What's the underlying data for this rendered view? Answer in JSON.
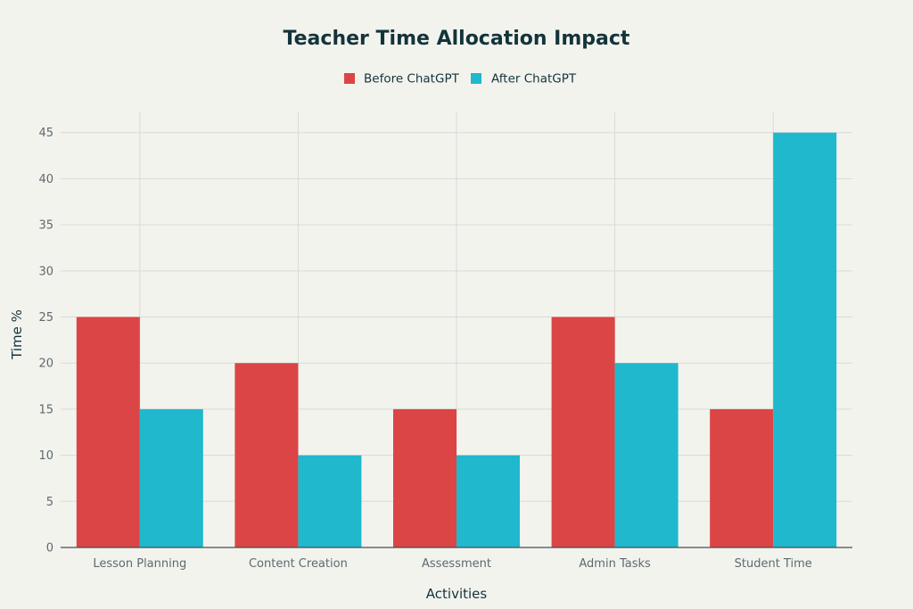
{
  "chart_data": {
    "type": "bar",
    "title": "Teacher Time Allocation Impact",
    "xlabel": "Activities",
    "ylabel": "Time %",
    "categories": [
      "Lesson Planning",
      "Content Creation",
      "Assessment",
      "Admin Tasks",
      "Student Time"
    ],
    "series": [
      {
        "name": "Before ChatGPT",
        "values": [
          25,
          20,
          15,
          25,
          15
        ],
        "color": "#db4545"
      },
      {
        "name": "After ChatGPT",
        "values": [
          15,
          10,
          10,
          20,
          45
        ],
        "color": "#1fb8cd"
      }
    ],
    "ylim": [
      0,
      47.2
    ],
    "yticks": [
      0,
      5,
      10,
      15,
      20,
      25,
      30,
      35,
      40,
      45
    ],
    "grid": true,
    "legend": "top-center"
  }
}
